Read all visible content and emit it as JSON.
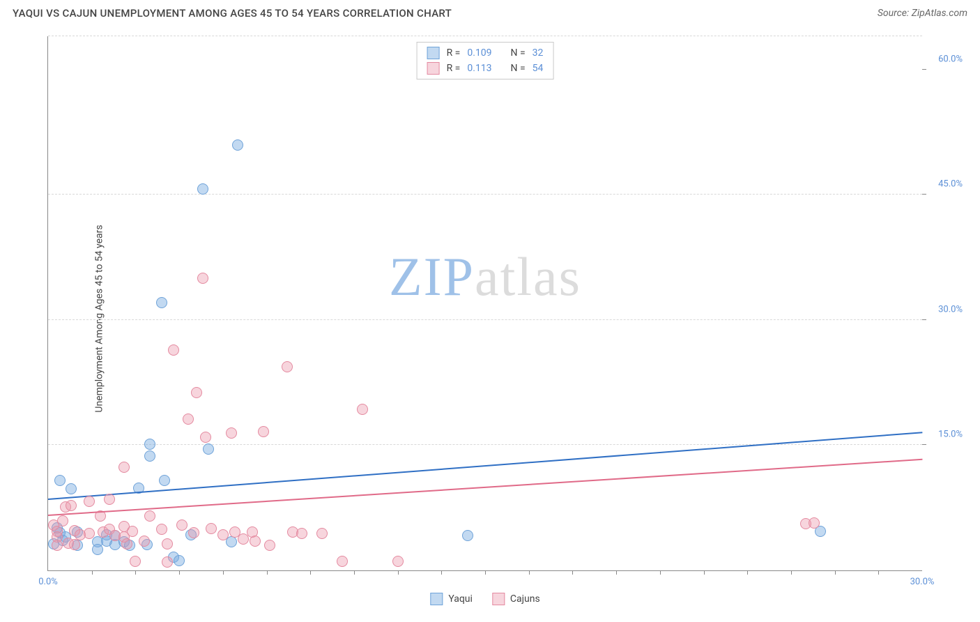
{
  "header": {
    "title": "YAQUI VS CAJUN UNEMPLOYMENT AMONG AGES 45 TO 54 YEARS CORRELATION CHART",
    "source": "Source: ZipAtlas.com"
  },
  "chart": {
    "type": "scatter",
    "ylabel": "Unemployment Among Ages 45 to 54 years",
    "background_color": "#ffffff",
    "grid_color": "#d8d8d8",
    "axis_color": "#888888",
    "tick_label_color": "#5b8fd6",
    "xlim": [
      0,
      30
    ],
    "ylim": [
      0,
      64
    ],
    "x_ticks_labeled": [
      {
        "value": 0,
        "label": "0.0%"
      },
      {
        "value": 30,
        "label": "30.0%"
      }
    ],
    "x_ticks_minor": [
      1.5,
      3,
      4.5,
      6,
      7.5,
      9,
      10.5,
      12,
      13.5,
      15,
      16.5,
      18,
      19.5,
      21,
      22.5,
      24,
      25.5,
      27,
      28.5
    ],
    "y_ticks_labeled": [
      {
        "value": 15,
        "label": "15.0%"
      },
      {
        "value": 30,
        "label": "30.0%"
      },
      {
        "value": 45,
        "label": "45.0%"
      },
      {
        "value": 60,
        "label": "60.0%"
      }
    ],
    "y_gridlines": [
      15,
      30,
      45,
      64
    ],
    "marker_radius": 8,
    "marker_border_width": 1.5,
    "series": [
      {
        "name": "Yaqui",
        "fill_color": "rgba(120,170,225,0.45)",
        "border_color": "#6fa3d9",
        "trend_color": "#2f6fc4",
        "R": "0.109",
        "N": "32",
        "trend": {
          "x1": 0,
          "y1": 8.4,
          "x2": 30,
          "y2": 16.4
        },
        "points": [
          {
            "x": 0.4,
            "y": 10.8
          },
          {
            "x": 0.4,
            "y": 4.5
          },
          {
            "x": 0.3,
            "y": 5.1
          },
          {
            "x": 0.2,
            "y": 3.2
          },
          {
            "x": 0.5,
            "y": 3.6
          },
          {
            "x": 0.6,
            "y": 4.0
          },
          {
            "x": 0.8,
            "y": 9.8
          },
          {
            "x": 1.0,
            "y": 4.6
          },
          {
            "x": 1.0,
            "y": 3.0
          },
          {
            "x": 1.7,
            "y": 3.4
          },
          {
            "x": 1.7,
            "y": 2.5
          },
          {
            "x": 2.0,
            "y": 4.3
          },
          {
            "x": 2.0,
            "y": 3.5
          },
          {
            "x": 2.3,
            "y": 4.2
          },
          {
            "x": 2.3,
            "y": 3.1
          },
          {
            "x": 2.6,
            "y": 3.4
          },
          {
            "x": 2.8,
            "y": 3.0
          },
          {
            "x": 3.1,
            "y": 9.9
          },
          {
            "x": 3.4,
            "y": 3.1
          },
          {
            "x": 3.5,
            "y": 15.1
          },
          {
            "x": 3.5,
            "y": 13.7
          },
          {
            "x": 3.9,
            "y": 32.1
          },
          {
            "x": 4.0,
            "y": 10.8
          },
          {
            "x": 4.3,
            "y": 1.6
          },
          {
            "x": 4.5,
            "y": 1.2
          },
          {
            "x": 4.9,
            "y": 4.3
          },
          {
            "x": 5.3,
            "y": 45.7
          },
          {
            "x": 5.5,
            "y": 14.5
          },
          {
            "x": 6.3,
            "y": 3.4
          },
          {
            "x": 6.5,
            "y": 51.0
          },
          {
            "x": 14.4,
            "y": 4.2
          },
          {
            "x": 26.5,
            "y": 4.7
          }
        ]
      },
      {
        "name": "Cajuns",
        "fill_color": "rgba(235,150,170,0.40)",
        "border_color": "#e48aa0",
        "trend_color": "#e06a88",
        "R": "0.113",
        "N": "54",
        "trend": {
          "x1": 0,
          "y1": 6.5,
          "x2": 30,
          "y2": 13.2
        },
        "points": [
          {
            "x": 0.2,
            "y": 5.4
          },
          {
            "x": 0.3,
            "y": 4.7
          },
          {
            "x": 0.3,
            "y": 4.0
          },
          {
            "x": 0.3,
            "y": 3.0
          },
          {
            "x": 0.5,
            "y": 5.9
          },
          {
            "x": 0.6,
            "y": 7.6
          },
          {
            "x": 0.7,
            "y": 3.3
          },
          {
            "x": 0.8,
            "y": 7.8
          },
          {
            "x": 0.9,
            "y": 4.8
          },
          {
            "x": 0.9,
            "y": 3.1
          },
          {
            "x": 1.1,
            "y": 4.3
          },
          {
            "x": 1.4,
            "y": 8.3
          },
          {
            "x": 1.4,
            "y": 4.4
          },
          {
            "x": 1.8,
            "y": 6.5
          },
          {
            "x": 1.9,
            "y": 4.6
          },
          {
            "x": 2.1,
            "y": 4.9
          },
          {
            "x": 2.1,
            "y": 8.5
          },
          {
            "x": 2.3,
            "y": 4.2
          },
          {
            "x": 2.6,
            "y": 5.3
          },
          {
            "x": 2.6,
            "y": 4.0
          },
          {
            "x": 2.6,
            "y": 12.4
          },
          {
            "x": 2.7,
            "y": 3.2
          },
          {
            "x": 2.9,
            "y": 4.7
          },
          {
            "x": 3.0,
            "y": 1.1
          },
          {
            "x": 3.3,
            "y": 3.5
          },
          {
            "x": 3.5,
            "y": 6.5
          },
          {
            "x": 3.9,
            "y": 4.9
          },
          {
            "x": 4.1,
            "y": 3.2
          },
          {
            "x": 4.1,
            "y": 1.0
          },
          {
            "x": 4.3,
            "y": 26.4
          },
          {
            "x": 4.6,
            "y": 5.4
          },
          {
            "x": 4.8,
            "y": 18.1
          },
          {
            "x": 5.0,
            "y": 4.5
          },
          {
            "x": 5.1,
            "y": 21.3
          },
          {
            "x": 5.3,
            "y": 35.0
          },
          {
            "x": 5.4,
            "y": 16.0
          },
          {
            "x": 5.6,
            "y": 5.0
          },
          {
            "x": 6.0,
            "y": 4.3
          },
          {
            "x": 6.3,
            "y": 16.5
          },
          {
            "x": 6.4,
            "y": 4.6
          },
          {
            "x": 6.7,
            "y": 3.8
          },
          {
            "x": 7.0,
            "y": 4.6
          },
          {
            "x": 7.1,
            "y": 3.5
          },
          {
            "x": 7.4,
            "y": 16.6
          },
          {
            "x": 7.6,
            "y": 3.0
          },
          {
            "x": 8.2,
            "y": 24.4
          },
          {
            "x": 8.4,
            "y": 4.6
          },
          {
            "x": 8.7,
            "y": 4.4
          },
          {
            "x": 9.4,
            "y": 4.4
          },
          {
            "x": 10.1,
            "y": 1.1
          },
          {
            "x": 10.8,
            "y": 19.3
          },
          {
            "x": 12.0,
            "y": 1.1
          },
          {
            "x": 26.0,
            "y": 5.6
          },
          {
            "x": 26.3,
            "y": 5.7
          }
        ]
      }
    ],
    "watermark": {
      "part1": "ZIP",
      "part2": "atlas"
    }
  },
  "legend_top_labels": {
    "R": "R =",
    "N": "N ="
  },
  "legend_bottom": [
    {
      "label": "Yaqui",
      "fill": "rgba(120,170,225,0.45)",
      "border": "#6fa3d9"
    },
    {
      "label": "Cajuns",
      "fill": "rgba(235,150,170,0.40)",
      "border": "#e48aa0"
    }
  ]
}
